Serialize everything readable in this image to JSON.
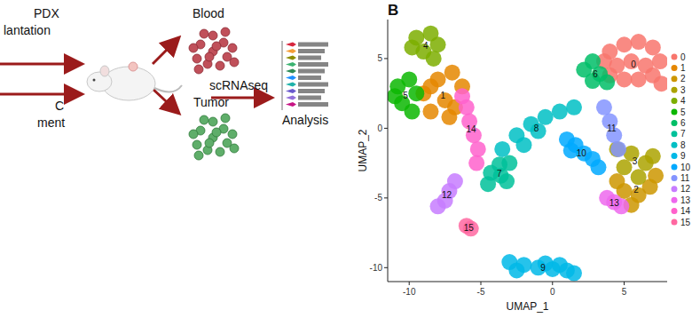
{
  "diagram": {
    "panel_label": "B",
    "labels": [
      "PDX",
      "lantation",
      "C",
      "ment",
      "Blood",
      "Tumor",
      "scRNAseq",
      "Analysis"
    ]
  },
  "chart_data": {
    "type": "scatter",
    "x_label": "UMAP_1",
    "y_label": "UMAP_2",
    "xlim": [
      -11.5,
      8
    ],
    "ylim": [
      -11,
      7.8
    ],
    "xticks": [
      -10,
      -5,
      0,
      5
    ],
    "yticks": [
      -10,
      -5,
      0,
      5
    ],
    "grid": false,
    "legend": "right",
    "marker": "circle",
    "series": [
      {
        "name": "0",
        "color": "#F8766D",
        "x": [
          4,
          5,
          6,
          7,
          7.5,
          6.5,
          5.5,
          4.5,
          6,
          7,
          5,
          4,
          3.6,
          7.6
        ],
        "values": [
          5.5,
          6,
          6.2,
          5.8,
          4.8,
          4.5,
          4.8,
          4.5,
          3.5,
          3.8,
          3.5,
          3.8,
          4.8,
          3.2
        ]
      },
      {
        "name": "1",
        "color": "#E58700",
        "x": [
          -9,
          -8,
          -7,
          -6.3,
          -7.5,
          -8.5,
          -6.8,
          -8.5,
          -7.2
        ],
        "values": [
          2.5,
          3.5,
          4,
          3,
          2,
          1.2,
          1.5,
          3,
          0.8
        ]
      },
      {
        "name": "2",
        "color": "#CD9600",
        "x": [
          5,
          6,
          6.8,
          5.5,
          4.5,
          7.2
        ],
        "values": [
          -4.5,
          -4.8,
          -4.2,
          -5.5,
          -3.8,
          -3.4
        ]
      },
      {
        "name": "3",
        "color": "#ABA300",
        "x": [
          4.5,
          5.5,
          6.5,
          5,
          6,
          7
        ],
        "values": [
          -1.5,
          -1.8,
          -2.5,
          -2.8,
          -3.5,
          -2
        ]
      },
      {
        "name": "4",
        "color": "#7CAE00",
        "x": [
          -9.5,
          -8.5,
          -8,
          -9,
          -8.3,
          -9.8
        ],
        "values": [
          6.5,
          6.8,
          6,
          5.5,
          5,
          5.8
        ]
      },
      {
        "name": "5",
        "color": "#0CB702",
        "x": [
          -10.8,
          -10,
          -9.5,
          -10.5,
          -9.8,
          -11
        ],
        "values": [
          3,
          3.5,
          2.5,
          1.8,
          1.2,
          2.3
        ]
      },
      {
        "name": "6",
        "color": "#00BE67",
        "x": [
          2.2,
          2.8,
          3.3,
          3.8,
          2.8
        ],
        "values": [
          4.2,
          4.8,
          3.9,
          3.3,
          3.4
        ]
      },
      {
        "name": "7",
        "color": "#00C19A",
        "x": [
          -4.3,
          -3.7,
          -3.2,
          -4.5,
          -3.6,
          -3
        ],
        "values": [
          -3.2,
          -2.6,
          -3.8,
          -4,
          -3.4,
          -2.5
        ]
      },
      {
        "name": "8",
        "color": "#00BFC4",
        "x": [
          -3.5,
          -2.5,
          -1.5,
          -0.5,
          0.5,
          1.5,
          -2,
          -1
        ],
        "values": [
          -1.5,
          -0.5,
          0.3,
          0.8,
          1.2,
          1.5,
          -1.2,
          -0.2
        ]
      },
      {
        "name": "9",
        "color": "#00B8E7",
        "x": [
          -3,
          -2,
          -1,
          0,
          1,
          -2.5,
          -0.5,
          0.5,
          1.5
        ],
        "values": [
          -9.6,
          -9.8,
          -10,
          -10.1,
          -10.2,
          -10.2,
          -9.7,
          -9.8,
          -10.4
        ]
      },
      {
        "name": "10",
        "color": "#00A9FF",
        "x": [
          1,
          1.6,
          2.2,
          2.8,
          1.3,
          3.2
        ],
        "values": [
          -0.8,
          -1.2,
          -1.8,
          -2.2,
          -1.6,
          -2.8
        ]
      },
      {
        "name": "11",
        "color": "#8494FF",
        "x": [
          3.6,
          4,
          4.3,
          4.6
        ],
        "values": [
          1.5,
          0.5,
          -0.5,
          -1.5
        ]
      },
      {
        "name": "12",
        "color": "#C77CFF",
        "x": [
          -8,
          -7.5,
          -7.2,
          -6.8
        ],
        "values": [
          -5.6,
          -5.2,
          -4.5,
          -3.8
        ]
      },
      {
        "name": "13",
        "color": "#ED68ED",
        "x": [
          3.8,
          4.3,
          4.8
        ],
        "values": [
          -5,
          -5.3,
          -5.6
        ]
      },
      {
        "name": "14",
        "color": "#FF61CC",
        "x": [
          -6.3,
          -6,
          -5.8,
          -5.5,
          -5.2,
          -5.3
        ],
        "values": [
          2.3,
          1.5,
          0.5,
          -0.5,
          -1.5,
          -2.5
        ]
      },
      {
        "name": "15",
        "color": "#FF68A1",
        "x": [
          -6,
          -5.7
        ],
        "values": [
          -7,
          -7.2
        ]
      }
    ]
  }
}
